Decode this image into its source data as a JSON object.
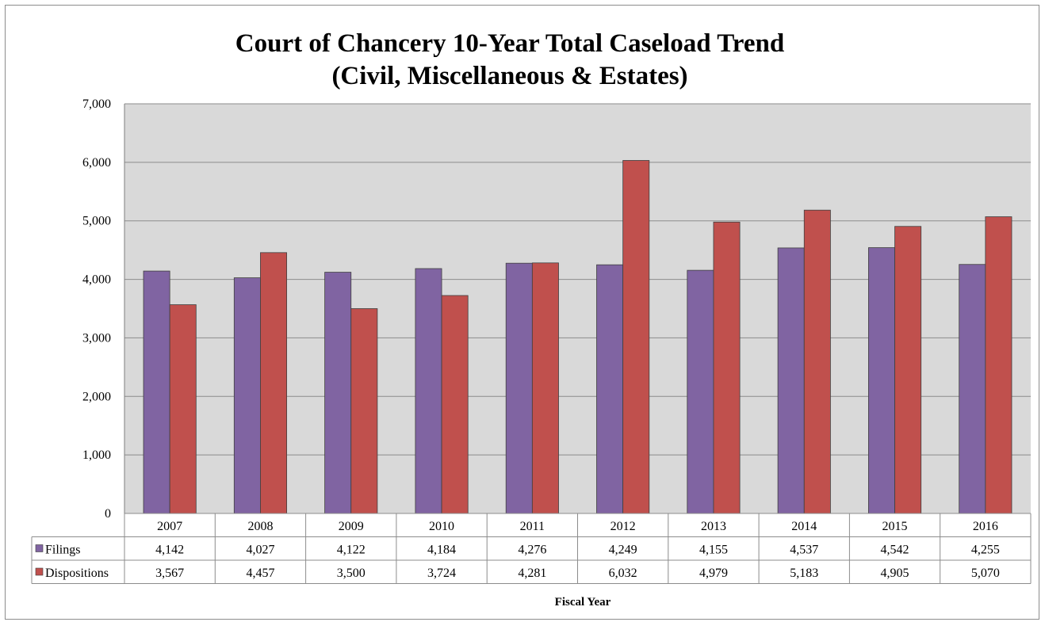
{
  "chart_data": {
    "type": "bar",
    "title": "Court of Chancery 10-Year Total Caseload Trend",
    "subtitle": "(Civil, Miscellaneous & Estates)",
    "xlabel": "Fiscal Year",
    "ylabel": "",
    "ylim": [
      0,
      7000
    ],
    "yticks": [
      "0",
      "1,000",
      "2,000",
      "3,000",
      "4,000",
      "5,000",
      "6,000",
      "7,000"
    ],
    "grid": true,
    "legend": "data-table",
    "categories": [
      "2007",
      "2008",
      "2009",
      "2010",
      "2011",
      "2012",
      "2013",
      "2014",
      "2015",
      "2016"
    ],
    "series": [
      {
        "name": "Filings",
        "color": "#8064a2",
        "values": [
          4142,
          4027,
          4122,
          4184,
          4276,
          4249,
          4155,
          4537,
          4542,
          4255
        ],
        "labels": [
          "4,142",
          "4,027",
          "4,122",
          "4,184",
          "4,276",
          "4,249",
          "4,155",
          "4,537",
          "4,542",
          "4,255"
        ]
      },
      {
        "name": "Dispositions",
        "color": "#c0504d",
        "values": [
          3567,
          4457,
          3500,
          3724,
          4281,
          6032,
          4979,
          5183,
          4905,
          5070
        ],
        "labels": [
          "3,567",
          "4,457",
          "3,500",
          "3,724",
          "4,281",
          "6,032",
          "4,979",
          "5,183",
          "4,905",
          "5,070"
        ]
      }
    ]
  }
}
